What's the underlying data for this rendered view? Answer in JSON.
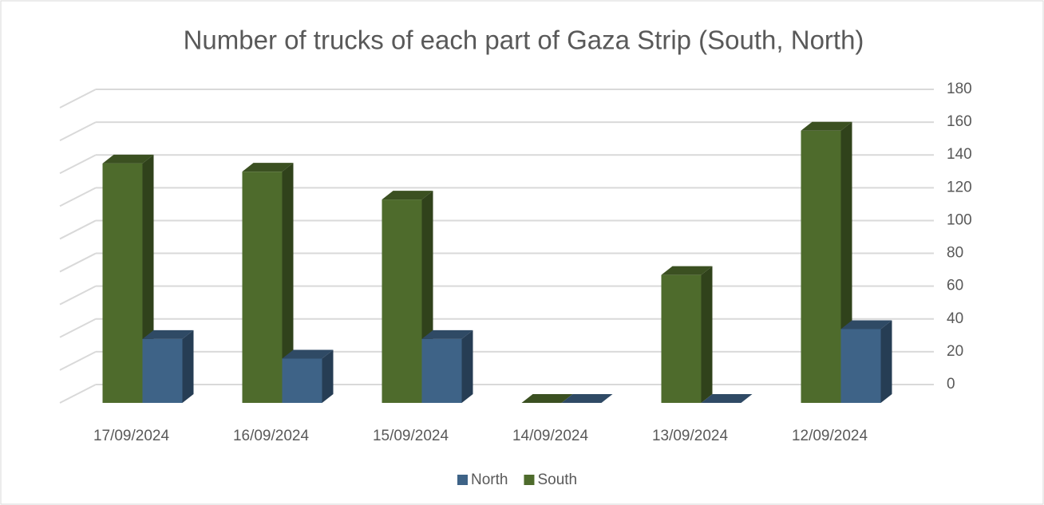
{
  "chart_data": {
    "type": "bar3d",
    "title": "Number of trucks of each part of Gaza Strip (South, North)",
    "categories": [
      "17/09/2024",
      "16/09/2024",
      "15/09/2024",
      "14/09/2024",
      "13/09/2024",
      "12/09/2024"
    ],
    "series": [
      {
        "name": "North",
        "color": "#3e6387",
        "values": [
          39,
          27,
          39,
          0,
          0,
          45
        ]
      },
      {
        "name": "South",
        "color": "#4e6b2c",
        "values": [
          146,
          141,
          124,
          0,
          78,
          166
        ]
      }
    ],
    "ylim": [
      0,
      180
    ],
    "yticks": [
      0,
      20,
      40,
      60,
      80,
      100,
      120,
      140,
      160,
      180
    ],
    "grid": true,
    "legend": "bottom"
  }
}
